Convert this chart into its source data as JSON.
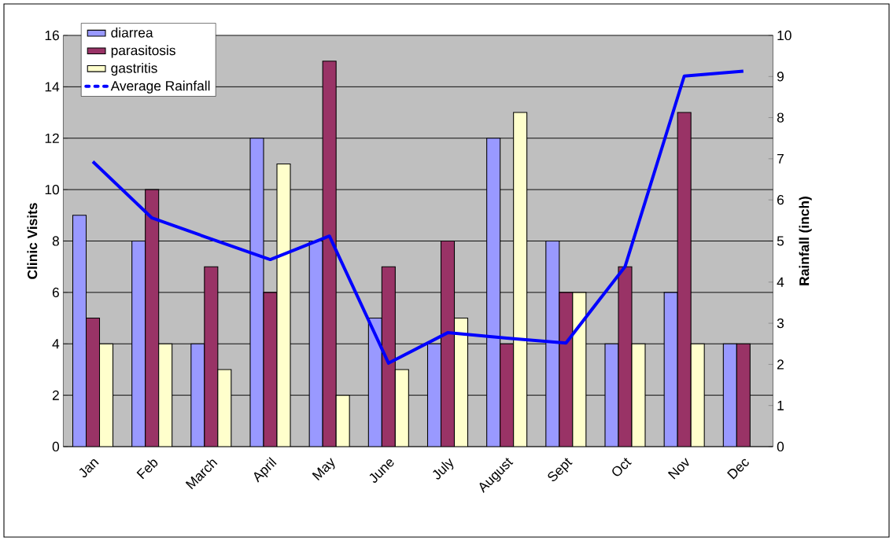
{
  "chart_data": {
    "type": "bar",
    "ylabel": "Clinic Visits",
    "y2label": "Rainfall (inch)",
    "categories": [
      "Jan",
      "Feb",
      "March",
      "April",
      "May",
      "June",
      "July",
      "August",
      "Sept",
      "Oct",
      "Nov",
      "Dec"
    ],
    "series": [
      {
        "name": "diarrea",
        "color": "#9999ff",
        "values": [
          9,
          8,
          4,
          12,
          8,
          5,
          4,
          12,
          8,
          4,
          6,
          4
        ]
      },
      {
        "name": "parasitosis",
        "color": "#993366",
        "values": [
          5,
          10,
          7,
          6,
          15,
          7,
          8,
          4,
          6,
          7,
          13,
          4
        ]
      },
      {
        "name": "gastritis",
        "color": "#ffffcc",
        "values": [
          4,
          4,
          3,
          11,
          2,
          3,
          5,
          13,
          6,
          4,
          4,
          null
        ]
      },
      {
        "name": "Average Rainfall",
        "type": "line",
        "axis": "y2",
        "color": "#0000ff",
        "values": [
          6.93,
          5.56,
          5.05,
          4.55,
          5.12,
          2.03,
          2.77,
          2.64,
          2.52,
          4.38,
          9.01,
          9.13
        ]
      }
    ],
    "ylim": [
      0,
      16
    ],
    "yticks": [
      0,
      2,
      4,
      6,
      8,
      10,
      12,
      14,
      16
    ],
    "y2lim": [
      0,
      10
    ],
    "y2ticks": [
      0,
      1,
      2,
      3,
      4,
      5,
      6,
      7,
      8,
      9,
      10
    ],
    "grid": "y",
    "legend": "top left",
    "marker": "none",
    "line_style": "solid"
  }
}
